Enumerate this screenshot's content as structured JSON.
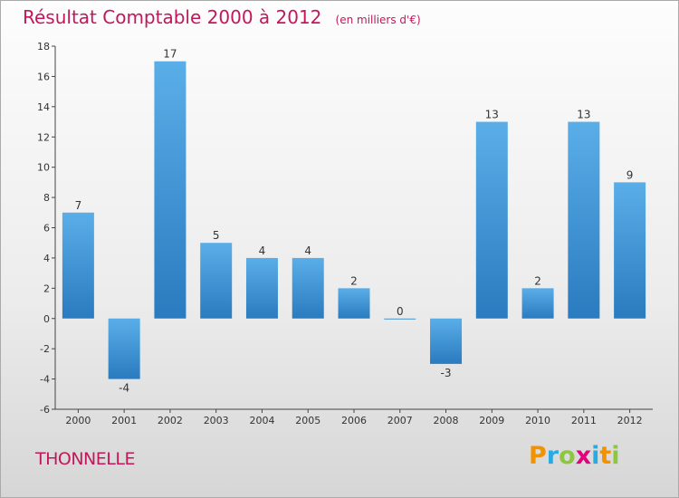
{
  "header": {
    "title": "Résultat Comptable 2000 à 2012",
    "subtitle": "(en milliers d'€)"
  },
  "footer": {
    "city": "THONNELLE",
    "logo": {
      "letters": [
        "P",
        "r",
        "o",
        "x",
        "i",
        "t",
        "i"
      ],
      "colors": [
        "#f39200",
        "#29abe2",
        "#8dc63f",
        "#e5007d",
        "#29abe2",
        "#f39200",
        "#8dc63f"
      ]
    }
  },
  "chart_data": {
    "type": "bar",
    "title": "Résultat Comptable 2000 à 2012",
    "subtitle": "(en milliers d'€)",
    "categories": [
      "2000",
      "2001",
      "2002",
      "2003",
      "2004",
      "2005",
      "2006",
      "2007",
      "2008",
      "2009",
      "2010",
      "2011",
      "2012"
    ],
    "values": [
      7,
      -4,
      17,
      5,
      4,
      4,
      2,
      0,
      -3,
      13,
      2,
      13,
      9
    ],
    "ylim": [
      -6,
      18
    ],
    "yticks": [
      -6,
      -4,
      -2,
      0,
      2,
      4,
      6,
      8,
      10,
      12,
      14,
      16,
      18
    ],
    "grid": false,
    "colors": {
      "bar_light": "#5aaee8",
      "bar_dark": "#2a7bbf",
      "axis": "#444444"
    }
  }
}
